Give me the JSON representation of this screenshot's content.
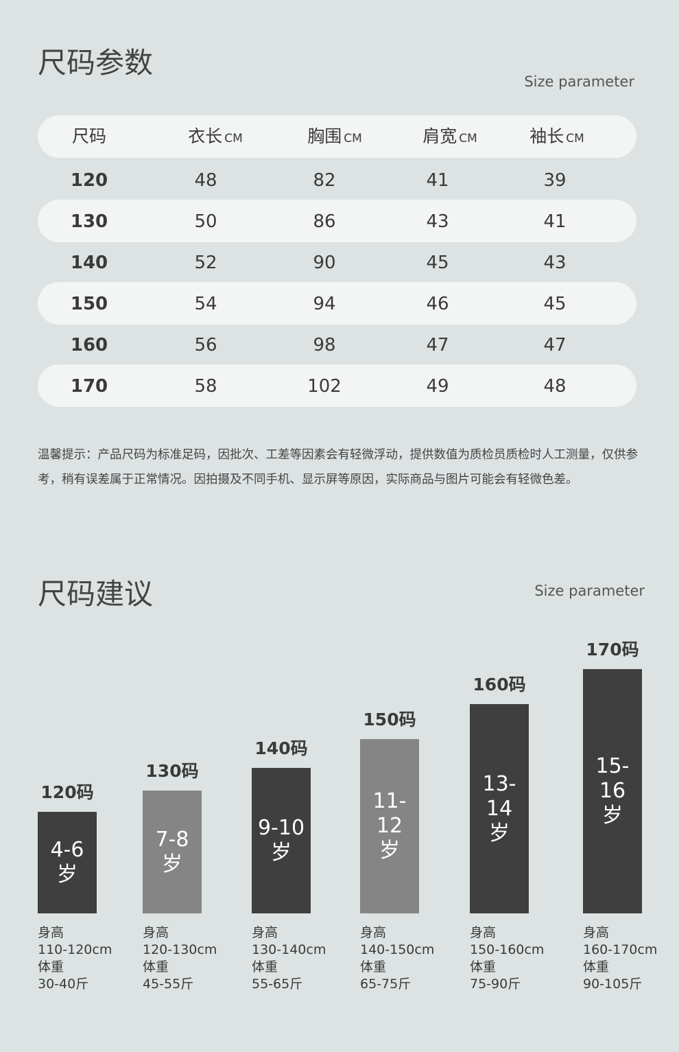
{
  "section1": {
    "title": "尺码参数",
    "subtitle": "Size parameter",
    "table": {
      "header": [
        {
          "label": "尺码"
        },
        {
          "label": "衣长",
          "unit": "CM"
        },
        {
          "label": "胸围",
          "unit": "CM"
        },
        {
          "label": "肩宽",
          "unit": "CM"
        },
        {
          "label": "袖长",
          "unit": "CM"
        }
      ],
      "rows": [
        [
          120,
          48,
          82,
          41,
          39
        ],
        [
          130,
          50,
          86,
          43,
          41
        ],
        [
          140,
          52,
          90,
          45,
          43
        ],
        [
          150,
          54,
          94,
          46,
          45
        ],
        [
          160,
          56,
          98,
          47,
          47
        ],
        [
          170,
          58,
          102,
          49,
          48
        ]
      ]
    },
    "note": "温馨提示：产品尺码为标准足码，因批次、工差等因素会有轻微浮动，提供数值为质检员质检时人工测量，仅供参考，稍有误差属于正常情况。因拍摄及不同手机、显示屏等原因，实际商品与图片可能会有轻微色差。"
  },
  "section2": {
    "title": "尺码建议",
    "subtitle": "Size parameter",
    "items": [
      {
        "size": "120码",
        "age": "4-6",
        "age_unit": "岁",
        "height_label": "身高",
        "height": "110-120cm",
        "weight_label": "体重",
        "weight": "30-40斤"
      },
      {
        "size": "130码",
        "age": "7-8",
        "age_unit": "岁",
        "height_label": "身高",
        "height": "120-130cm",
        "weight_label": "体重",
        "weight": "45-55斤"
      },
      {
        "size": "140码",
        "age": "9-10",
        "age_unit": "岁",
        "height_label": "身高",
        "height": "130-140cm",
        "weight_label": "体重",
        "weight": "55-65斤"
      },
      {
        "size": "150码",
        "age": "11-12",
        "age_unit": "岁",
        "height_label": "身高",
        "height": "140-150cm",
        "weight_label": "体重",
        "weight": "65-75斤"
      },
      {
        "size": "160码",
        "age": "13-14",
        "age_unit": "岁",
        "height_label": "身高",
        "height": "150-160cm",
        "weight_label": "体重",
        "weight": "75-90斤"
      },
      {
        "size": "170码",
        "age": "15-16",
        "age_unit": "岁",
        "height_label": "身高",
        "height": "160-170cm",
        "weight_label": "体重",
        "weight": "90-105斤"
      }
    ]
  }
}
